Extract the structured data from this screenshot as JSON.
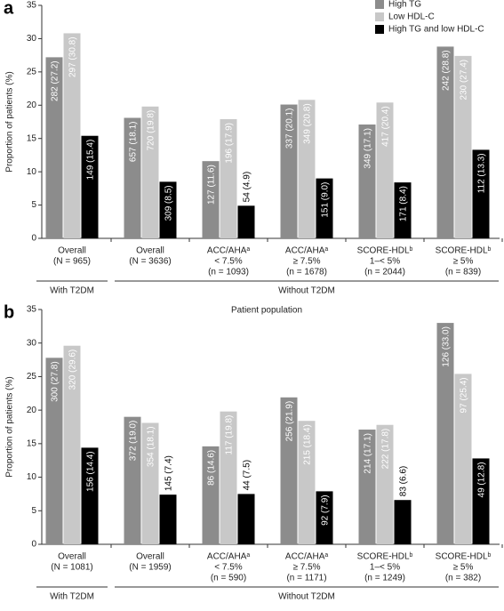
{
  "chart_data": [
    {
      "type": "bar",
      "label": "a",
      "ylabel": "Proportion of patients (%)",
      "xlabel": "Patient population",
      "categories": [
        [
          "Overall",
          "(N = 965)"
        ],
        [
          "Overall",
          "(N = 3636)"
        ],
        [
          "ACC/AHAᵃ",
          "< 7.5%",
          "(n = 1093)"
        ],
        [
          "ACC/AHAᵃ",
          "≥ 7.5%",
          "(n = 1678)"
        ],
        [
          "SCORE-HDLᵇ",
          "1–< 5%",
          "(n = 2044)"
        ],
        [
          "SCORE-HDLᵇ",
          "≥ 5%",
          "(n = 839)"
        ]
      ],
      "groups": [
        "With T2DM",
        "Without T2DM"
      ],
      "series": [
        {
          "name": "High TG",
          "color": "#8c8c8c",
          "values": [
            27.2,
            18.1,
            11.6,
            20.1,
            17.1,
            28.8
          ],
          "value_labels": [
            "282 (27.2)",
            "657 (18.1)",
            "127 (11.6)",
            "337 (20.1)",
            "349 (17.1)",
            "242 (28.8)"
          ]
        },
        {
          "name": "Low HDL-C",
          "color": "#c8c8c8",
          "values": [
            30.8,
            19.8,
            17.9,
            20.8,
            20.4,
            27.4
          ],
          "value_labels": [
            "297 (30.8)",
            "720 (19.8)",
            "196 (17.9)",
            "349 (20.8)",
            "417 (20.4)",
            "230 (27.4)"
          ]
        },
        {
          "name": "High TG and low HDL-C",
          "color": "#000000",
          "values": [
            15.4,
            8.5,
            4.9,
            9.0,
            8.4,
            13.3
          ],
          "value_labels": [
            "149 (15.4)",
            "309 (8.5)",
            "54 (4.9)",
            "151 (9.0)",
            "171 (8.4)",
            "112 (13.3)"
          ]
        }
      ],
      "ylim": [
        0,
        35
      ],
      "yticks": [
        0,
        5,
        10,
        15,
        20,
        25,
        30,
        35
      ],
      "legend": "upper right"
    },
    {
      "type": "bar",
      "label": "b",
      "ylabel": "Proportion of patients (%)",
      "xlabel": "Patient population",
      "categories": [
        [
          "Overall",
          "(N = 1081)"
        ],
        [
          "Overall",
          "(N = 1959)"
        ],
        [
          "ACC/AHAᵃ",
          "< 7.5%",
          "(n = 590)"
        ],
        [
          "ACC/AHAᵃ",
          "≥ 7.5%",
          "(n = 1171)"
        ],
        [
          "SCORE-HDLᵇ",
          "1–< 5%",
          "(n = 1249)"
        ],
        [
          "SCORE-HDLᵇ",
          "≥ 5%",
          "(n = 382)"
        ]
      ],
      "groups": [
        "With T2DM",
        "Without T2DM"
      ],
      "series": [
        {
          "color": "#8c8c8c",
          "values": [
            27.8,
            19.0,
            14.6,
            21.9,
            17.1,
            33.0
          ],
          "value_labels": [
            "300 (27.8)",
            "372 (19.0)",
            "86 (14.6)",
            "256 (21.9)",
            "214 (17.1)",
            "126 (33.0)"
          ]
        },
        {
          "color": "#c8c8c8",
          "values": [
            29.6,
            18.1,
            19.8,
            18.4,
            17.8,
            25.4
          ],
          "value_labels": [
            "320 (29.6)",
            "354 (18.1)",
            "117 (19.8)",
            "215 (18.4)",
            "222 (17.8)",
            "97 (25.4)"
          ]
        },
        {
          "color": "#000000",
          "values": [
            14.4,
            7.4,
            7.5,
            7.9,
            6.6,
            12.8
          ],
          "value_labels": [
            "156 (14.4)",
            "145 (7.4)",
            "44 (7.5)",
            "92 (7.9)",
            "83 (6.6)",
            "49 (12.8)"
          ]
        }
      ],
      "ylim": [
        0,
        35
      ],
      "yticks": [
        0,
        5,
        10,
        15,
        20,
        25,
        30,
        35
      ]
    }
  ]
}
